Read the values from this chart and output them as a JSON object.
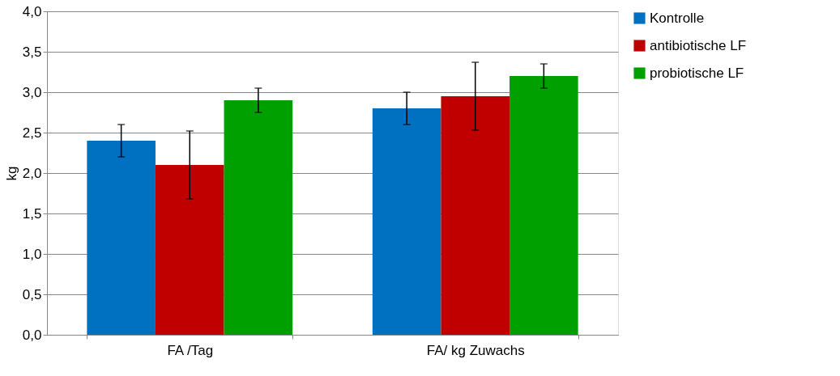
{
  "chart_data": {
    "type": "bar",
    "ylabel": "kg",
    "categories": [
      "FA /Tag",
      "FA/ kg Zuwachs"
    ],
    "series": [
      {
        "name": "Kontrolle",
        "color": "#0070c0",
        "values": [
          2.4,
          2.8
        ],
        "errors": [
          0.2,
          0.2
        ]
      },
      {
        "name": "antibiotische LF",
        "color": "#c00000",
        "values": [
          2.1,
          2.95
        ],
        "errors": [
          0.42,
          0.42
        ]
      },
      {
        "name": "probiotische LF",
        "color": "#00a000",
        "values": [
          2.9,
          3.2
        ],
        "errors": [
          0.15,
          0.15
        ]
      }
    ],
    "ylim": [
      0,
      4
    ],
    "yticks": [
      {
        "value": 0,
        "label": "0,0"
      },
      {
        "value": 0.5,
        "label": "0,5"
      },
      {
        "value": 1,
        "label": "1,0"
      },
      {
        "value": 1.5,
        "label": "1,5"
      },
      {
        "value": 2,
        "label": "2,0"
      },
      {
        "value": 2.5,
        "label": "2,5"
      },
      {
        "value": 3,
        "label": "3,0"
      },
      {
        "value": 3.5,
        "label": "3,5"
      },
      {
        "value": 4,
        "label": "4,0"
      }
    ],
    "grid": "y",
    "legend": "right"
  }
}
